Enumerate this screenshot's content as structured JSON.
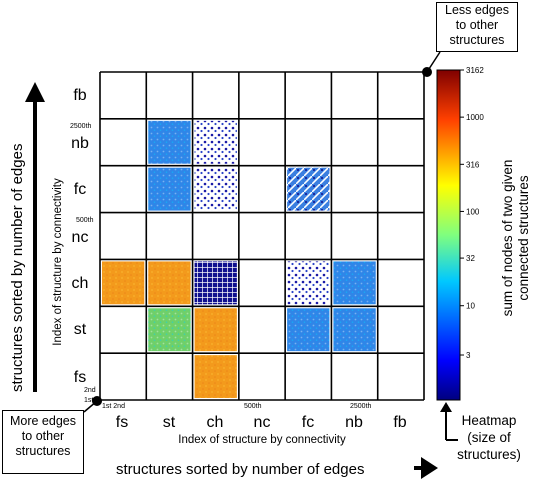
{
  "chart_data": {
    "type": "heatmap",
    "categories": [
      "fs",
      "st",
      "ch",
      "nc",
      "fc",
      "nb",
      "fb"
    ],
    "x_label_outer": "structures  sorted by number of edges",
    "x_label_inner": "Index of structure by connectivity",
    "y_label_outer": "structures  sorted by number of edges",
    "y_label_inner": "Index of structure by connectivity",
    "x_small_ticks": [
      "1st 2nd",
      "500th",
      "2500th"
    ],
    "y_small_ticks": [
      "2500th",
      "500th",
      "2nd",
      "1st"
    ],
    "colorbar": {
      "scale": "log",
      "range": [
        1,
        3162
      ],
      "ticks": [
        "3162",
        "1000",
        "316",
        "100",
        "32",
        "10",
        "3"
      ],
      "label_line1": "sum of nodes of two given",
      "label_line2": "connected structures"
    },
    "filled_blocks": [
      {
        "col": "st",
        "row": "nb",
        "level": "mid",
        "pattern": "dense"
      },
      {
        "col": "ch",
        "row": "nb",
        "level": "low",
        "pattern": "sparse"
      },
      {
        "col": "st",
        "row": "fc",
        "level": "mid",
        "pattern": "dense"
      },
      {
        "col": "ch",
        "row": "fc",
        "level": "low",
        "pattern": "sparse"
      },
      {
        "col": "fc",
        "row": "fc",
        "level": "mid",
        "pattern": "diagonal"
      },
      {
        "col": "fs",
        "row": "ch",
        "level": "high",
        "pattern": "dense"
      },
      {
        "col": "st",
        "row": "ch",
        "level": "high",
        "pattern": "dense"
      },
      {
        "col": "ch",
        "row": "ch",
        "level": "low",
        "pattern": "grid"
      },
      {
        "col": "fc",
        "row": "ch",
        "level": "low",
        "pattern": "sparse"
      },
      {
        "col": "nb",
        "row": "ch",
        "level": "mid",
        "pattern": "dense"
      },
      {
        "col": "st",
        "row": "st",
        "level": "midhigh",
        "pattern": "dense"
      },
      {
        "col": "ch",
        "row": "st",
        "level": "high",
        "pattern": "dense"
      },
      {
        "col": "fc",
        "row": "st",
        "level": "mid",
        "pattern": "dense"
      },
      {
        "col": "nb",
        "row": "st",
        "level": "mid",
        "pattern": "dense"
      },
      {
        "col": "ch",
        "row": "fs",
        "level": "high",
        "pattern": "dense"
      }
    ]
  },
  "callouts": {
    "less_edges": [
      "Less edges",
      "to other",
      "structures"
    ],
    "more_edges": [
      "More edges",
      "to other",
      "structures"
    ],
    "heatmap": [
      "Heatmap",
      "(size of",
      "structures)"
    ]
  },
  "colors": {
    "high": "#f39a1c",
    "mid": "#2f86e8",
    "low": "#1a1aa6",
    "grid": "#000000"
  }
}
